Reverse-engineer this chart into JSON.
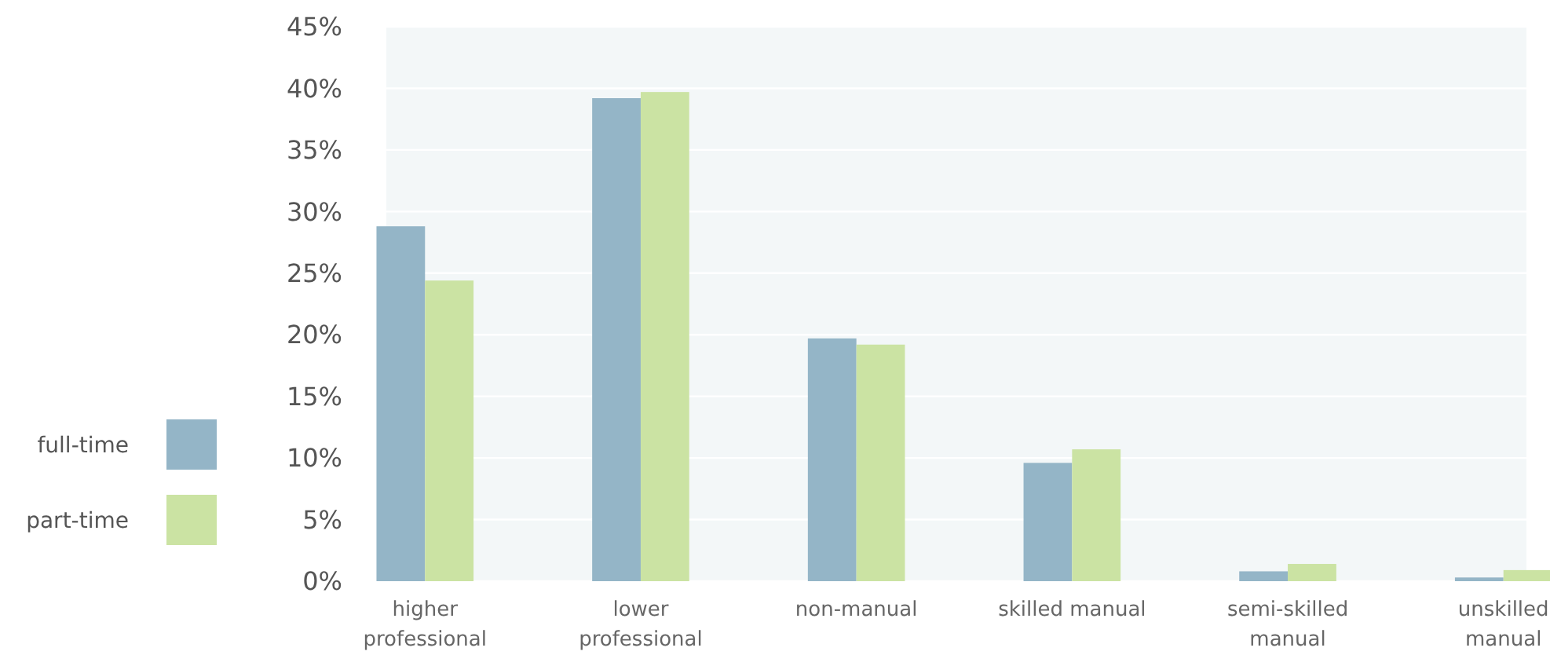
{
  "chart_data": {
    "type": "bar",
    "categories": [
      "higher professional",
      "lower professional",
      "non-manual",
      "skilled manual",
      "semi-skilled manual",
      "unskilled manual"
    ],
    "series": [
      {
        "name": "full-time",
        "color": "#94b5c7",
        "values": [
          28.8,
          39.2,
          19.7,
          9.6,
          0.8,
          0.3
        ]
      },
      {
        "name": "part-time",
        "color": "#cbe3a3",
        "values": [
          24.4,
          39.7,
          19.2,
          10.7,
          1.4,
          0.9
        ]
      }
    ],
    "ylim": [
      0,
      45
    ],
    "yticks": [
      {
        "value": 0,
        "label": "0%"
      },
      {
        "value": 5,
        "label": "5%"
      },
      {
        "value": 10,
        "label": "10%"
      },
      {
        "value": 15,
        "label": "15%"
      },
      {
        "value": 20,
        "label": "20%"
      },
      {
        "value": 25,
        "label": "25%"
      },
      {
        "value": 30,
        "label": "30%"
      },
      {
        "value": 35,
        "label": "35%"
      },
      {
        "value": 40,
        "label": "40%"
      },
      {
        "value": 45,
        "label": "45%"
      }
    ],
    "grid": "y",
    "legend": "left"
  }
}
